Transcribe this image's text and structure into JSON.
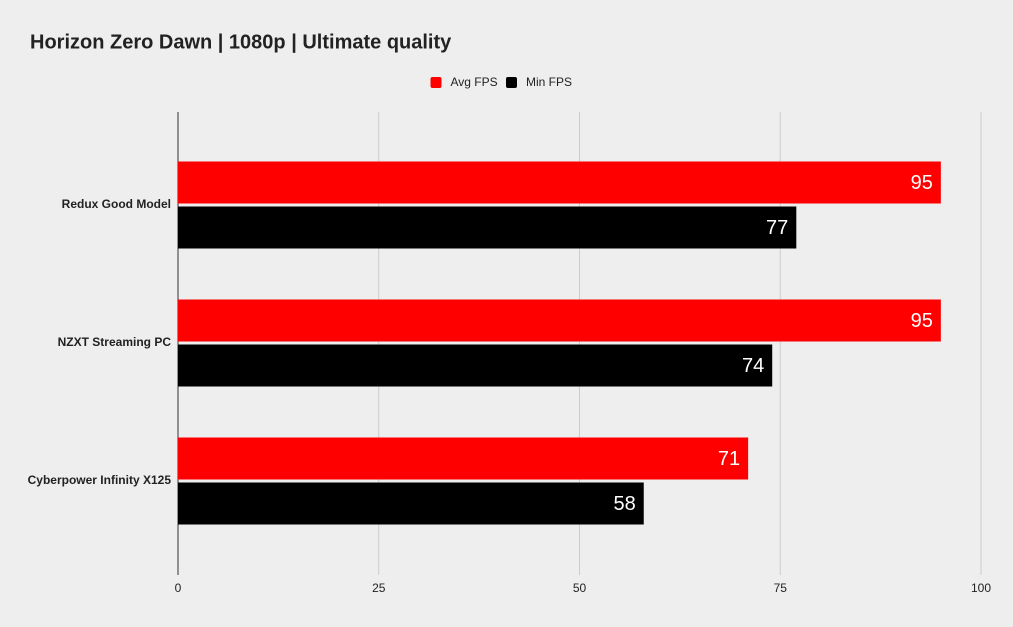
{
  "chart_data": {
    "type": "hbar",
    "title": "Horizon Zero Dawn | 1080p | Ultimate quality",
    "categories": [
      "Redux Good Model",
      "NZXT Streaming PC",
      "Cyberpower Infinity X125"
    ],
    "series": [
      {
        "name": "Avg FPS",
        "color": "#ff0000",
        "values": [
          95,
          95,
          71
        ]
      },
      {
        "name": "Min FPS",
        "color": "#000000",
        "values": [
          77,
          74,
          58
        ]
      }
    ],
    "xlim": [
      0,
      100
    ],
    "xticks": [
      0,
      25,
      50,
      75,
      100
    ],
    "grid": true,
    "legend": "top"
  }
}
